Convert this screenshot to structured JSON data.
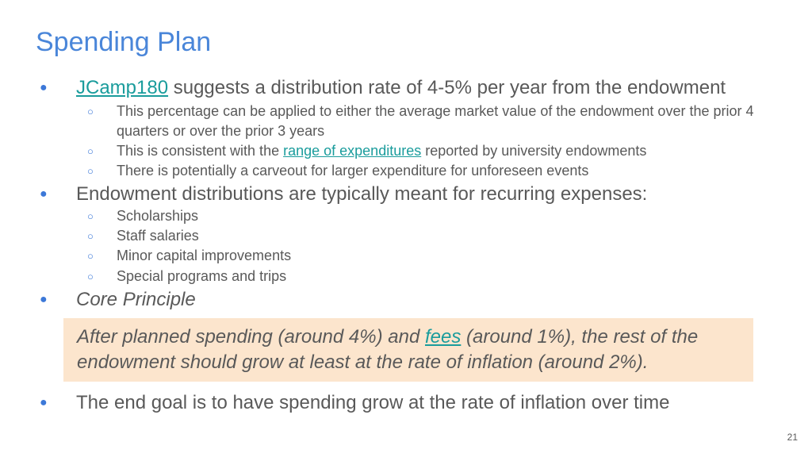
{
  "slide": {
    "title": "Spending Plan",
    "page_number": "21"
  },
  "bullets": {
    "b1": {
      "link": "JCamp180",
      "rest": " suggests a distribution rate of 4-5% per year from the endowment"
    },
    "b1_subs": {
      "s1": "This percentage can be applied to either the average market value of the endowment over the prior 4 quarters or over the prior 3 years",
      "s2_pre": "This is consistent with the ",
      "s2_link": "range of expenditures",
      "s2_post": " reported by university endowments",
      "s3": "There is potentially a carveout for larger expenditure for unforeseen events"
    },
    "b2": "Endowment distributions are typically meant for recurring expenses:",
    "b2_subs": {
      "s1": "Scholarships",
      "s2": "Staff salaries",
      "s3": "Minor capital improvements",
      "s4": "Special programs and trips"
    },
    "b3": "Core Principle",
    "callout": {
      "pre": "After planned spending (around 4%) and ",
      "link": "fees",
      "post": " (around 1%), the rest of the endowment should grow at least at the rate of inflation (around 2%)."
    },
    "b4": "The end goal is to have spending grow at the rate of inflation over time"
  },
  "icons": {
    "bullet": "●",
    "sub_bullet": "○"
  },
  "colors": {
    "title": "#4a86d9",
    "bullet": "#3c78d8",
    "link": "#1a9c9c",
    "callout_bg": "#fce5cd",
    "text": "#595959"
  }
}
